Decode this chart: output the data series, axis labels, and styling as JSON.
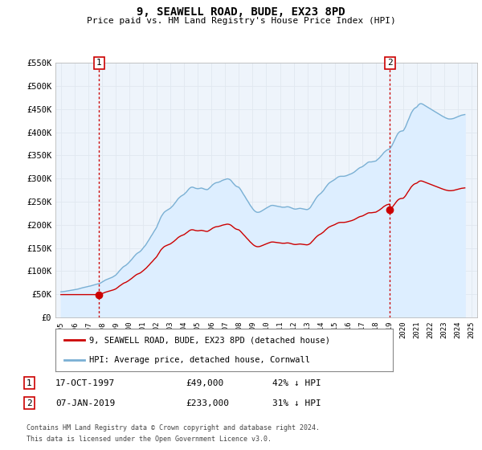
{
  "title": "9, SEAWELL ROAD, BUDE, EX23 8PD",
  "subtitle": "Price paid vs. HM Land Registry's House Price Index (HPI)",
  "hpi_color": "#7ab0d4",
  "hpi_fill_color": "#ddeeff",
  "price_color": "#cc0000",
  "vline_color": "#cc0000",
  "point_color": "#cc0000",
  "ylim": [
    0,
    550000
  ],
  "yticks": [
    0,
    50000,
    100000,
    150000,
    200000,
    250000,
    300000,
    350000,
    400000,
    450000,
    500000,
    550000
  ],
  "ytick_labels": [
    "£0",
    "£50K",
    "£100K",
    "£150K",
    "£200K",
    "£250K",
    "£300K",
    "£350K",
    "£400K",
    "£450K",
    "£500K",
    "£550K"
  ],
  "xlim_start": 1994.6,
  "xlim_end": 2025.4,
  "sale1_x": 1997.79,
  "sale1_y": 49000,
  "sale1_label": "1",
  "sale2_x": 2019.03,
  "sale2_y": 233000,
  "sale2_label": "2",
  "legend_line1": "9, SEAWELL ROAD, BUDE, EX23 8PD (detached house)",
  "legend_line2": "HPI: Average price, detached house, Cornwall",
  "footnote1": "Contains HM Land Registry data © Crown copyright and database right 2024.",
  "footnote2": "This data is licensed under the Open Government Licence v3.0.",
  "table_row1": [
    "1",
    "17-OCT-1997",
    "£49,000",
    "42% ↓ HPI"
  ],
  "table_row2": [
    "2",
    "07-JAN-2019",
    "£233,000",
    "31% ↓ HPI"
  ],
  "hpi_data_x": [
    1995.0,
    1995.08,
    1995.17,
    1995.25,
    1995.33,
    1995.42,
    1995.5,
    1995.58,
    1995.67,
    1995.75,
    1995.83,
    1995.92,
    1996.0,
    1996.08,
    1996.17,
    1996.25,
    1996.33,
    1996.42,
    1996.5,
    1996.58,
    1996.67,
    1996.75,
    1996.83,
    1996.92,
    1997.0,
    1997.08,
    1997.17,
    1997.25,
    1997.33,
    1997.42,
    1997.5,
    1997.58,
    1997.67,
    1997.75,
    1997.83,
    1997.92,
    1998.0,
    1998.08,
    1998.17,
    1998.25,
    1998.33,
    1998.42,
    1998.5,
    1998.58,
    1998.67,
    1998.75,
    1998.83,
    1998.92,
    1999.0,
    1999.08,
    1999.17,
    1999.25,
    1999.33,
    1999.42,
    1999.5,
    1999.58,
    1999.67,
    1999.75,
    1999.83,
    1999.92,
    2000.0,
    2000.08,
    2000.17,
    2000.25,
    2000.33,
    2000.42,
    2000.5,
    2000.58,
    2000.67,
    2000.75,
    2000.83,
    2000.92,
    2001.0,
    2001.08,
    2001.17,
    2001.25,
    2001.33,
    2001.42,
    2001.5,
    2001.58,
    2001.67,
    2001.75,
    2001.83,
    2001.92,
    2002.0,
    2002.08,
    2002.17,
    2002.25,
    2002.33,
    2002.42,
    2002.5,
    2002.58,
    2002.67,
    2002.75,
    2002.83,
    2002.92,
    2003.0,
    2003.08,
    2003.17,
    2003.25,
    2003.33,
    2003.42,
    2003.5,
    2003.58,
    2003.67,
    2003.75,
    2003.83,
    2003.92,
    2004.0,
    2004.08,
    2004.17,
    2004.25,
    2004.33,
    2004.42,
    2004.5,
    2004.58,
    2004.67,
    2004.75,
    2004.83,
    2004.92,
    2005.0,
    2005.08,
    2005.17,
    2005.25,
    2005.33,
    2005.42,
    2005.5,
    2005.58,
    2005.67,
    2005.75,
    2005.83,
    2005.92,
    2006.0,
    2006.08,
    2006.17,
    2006.25,
    2006.33,
    2006.42,
    2006.5,
    2006.58,
    2006.67,
    2006.75,
    2006.83,
    2006.92,
    2007.0,
    2007.08,
    2007.17,
    2007.25,
    2007.33,
    2007.42,
    2007.5,
    2007.58,
    2007.67,
    2007.75,
    2007.83,
    2007.92,
    2008.0,
    2008.08,
    2008.17,
    2008.25,
    2008.33,
    2008.42,
    2008.5,
    2008.58,
    2008.67,
    2008.75,
    2008.83,
    2008.92,
    2009.0,
    2009.08,
    2009.17,
    2009.25,
    2009.33,
    2009.42,
    2009.5,
    2009.58,
    2009.67,
    2009.75,
    2009.83,
    2009.92,
    2010.0,
    2010.08,
    2010.17,
    2010.25,
    2010.33,
    2010.42,
    2010.5,
    2010.58,
    2010.67,
    2010.75,
    2010.83,
    2010.92,
    2011.0,
    2011.08,
    2011.17,
    2011.25,
    2011.33,
    2011.42,
    2011.5,
    2011.58,
    2011.67,
    2011.75,
    2011.83,
    2011.92,
    2012.0,
    2012.08,
    2012.17,
    2012.25,
    2012.33,
    2012.42,
    2012.5,
    2012.58,
    2012.67,
    2012.75,
    2012.83,
    2012.92,
    2013.0,
    2013.08,
    2013.17,
    2013.25,
    2013.33,
    2013.42,
    2013.5,
    2013.58,
    2013.67,
    2013.75,
    2013.83,
    2013.92,
    2014.0,
    2014.08,
    2014.17,
    2014.25,
    2014.33,
    2014.42,
    2014.5,
    2014.58,
    2014.67,
    2014.75,
    2014.83,
    2014.92,
    2015.0,
    2015.08,
    2015.17,
    2015.25,
    2015.33,
    2015.42,
    2015.5,
    2015.58,
    2015.67,
    2015.75,
    2015.83,
    2015.92,
    2016.0,
    2016.08,
    2016.17,
    2016.25,
    2016.33,
    2016.42,
    2016.5,
    2016.58,
    2016.67,
    2016.75,
    2016.83,
    2016.92,
    2017.0,
    2017.08,
    2017.17,
    2017.25,
    2017.33,
    2017.42,
    2017.5,
    2017.58,
    2017.67,
    2017.75,
    2017.83,
    2017.92,
    2018.0,
    2018.08,
    2018.17,
    2018.25,
    2018.33,
    2018.42,
    2018.5,
    2018.58,
    2018.67,
    2018.75,
    2018.83,
    2018.92,
    2019.0,
    2019.08,
    2019.17,
    2019.25,
    2019.33,
    2019.42,
    2019.5,
    2019.58,
    2019.67,
    2019.75,
    2019.83,
    2019.92,
    2020.0,
    2020.08,
    2020.17,
    2020.25,
    2020.33,
    2020.42,
    2020.5,
    2020.58,
    2020.67,
    2020.75,
    2020.83,
    2020.92,
    2021.0,
    2021.08,
    2021.17,
    2021.25,
    2021.33,
    2021.42,
    2021.5,
    2021.58,
    2021.67,
    2021.75,
    2021.83,
    2021.92,
    2022.0,
    2022.08,
    2022.17,
    2022.25,
    2022.33,
    2022.42,
    2022.5,
    2022.58,
    2022.67,
    2022.75,
    2022.83,
    2022.92,
    2023.0,
    2023.08,
    2023.17,
    2023.25,
    2023.33,
    2023.42,
    2023.5,
    2023.58,
    2023.67,
    2023.75,
    2023.83,
    2023.92,
    2024.0,
    2024.08,
    2024.17,
    2024.25,
    2024.33,
    2024.42,
    2024.5
  ],
  "hpi_data_y": [
    55000,
    55200,
    55500,
    55800,
    56200,
    56800,
    57200,
    57600,
    58000,
    58400,
    58800,
    59200,
    59600,
    60000,
    60500,
    61000,
    61800,
    62500,
    63200,
    63800,
    64400,
    65000,
    65500,
    66000,
    66500,
    67000,
    67800,
    68500,
    69200,
    70000,
    70800,
    71500,
    72000,
    72500,
    73200,
    74500,
    76000,
    77500,
    79000,
    80500,
    81500,
    82500,
    83500,
    84500,
    85500,
    86500,
    88000,
    89500,
    91000,
    93500,
    96500,
    99500,
    102000,
    105000,
    107500,
    109500,
    111000,
    112500,
    114500,
    117000,
    119500,
    122000,
    125000,
    128000,
    131000,
    134000,
    136500,
    138500,
    140000,
    141500,
    143500,
    146500,
    149500,
    152500,
    155500,
    159000,
    163000,
    167000,
    171000,
    175000,
    179000,
    183000,
    187000,
    191000,
    195000,
    201000,
    207000,
    213000,
    218000,
    222000,
    225500,
    228000,
    230000,
    231500,
    233000,
    234500,
    236000,
    238500,
    241000,
    244000,
    247000,
    250500,
    254000,
    257000,
    259500,
    261500,
    263000,
    264500,
    266000,
    268500,
    271000,
    274000,
    277000,
    279500,
    281000,
    281500,
    281000,
    280000,
    279000,
    278500,
    278000,
    278500,
    279000,
    279500,
    279000,
    278000,
    277000,
    276500,
    276000,
    277000,
    279000,
    281500,
    284000,
    286500,
    288500,
    290000,
    291000,
    291500,
    292000,
    293000,
    294000,
    295500,
    296500,
    297500,
    298000,
    299000,
    299500,
    299000,
    298000,
    296000,
    293000,
    290000,
    287000,
    284500,
    283000,
    282000,
    281000,
    278000,
    274000,
    270000,
    266000,
    262000,
    258000,
    254000,
    250000,
    246000,
    242000,
    238500,
    235000,
    232000,
    229500,
    228000,
    227000,
    227000,
    227500,
    228500,
    230000,
    231500,
    233000,
    234500,
    236000,
    237500,
    239000,
    240500,
    241500,
    242000,
    242000,
    241500,
    241000,
    240500,
    240000,
    239500,
    239000,
    238500,
    238000,
    238000,
    238000,
    238500,
    239000,
    239000,
    238500,
    237500,
    236500,
    235500,
    234500,
    234000,
    234000,
    234500,
    235000,
    235500,
    235500,
    235000,
    234500,
    234000,
    233500,
    233000,
    233000,
    234000,
    236000,
    239000,
    243000,
    247000,
    251000,
    255000,
    259000,
    262000,
    264500,
    266500,
    268500,
    271000,
    274000,
    277500,
    281000,
    284500,
    287500,
    290000,
    292000,
    293500,
    295000,
    296500,
    298000,
    300000,
    302000,
    303500,
    304500,
    305000,
    305000,
    305000,
    305000,
    305500,
    306000,
    307000,
    308000,
    309000,
    310000,
    311000,
    312500,
    314000,
    316000,
    318000,
    320000,
    322000,
    323500,
    324500,
    325500,
    327000,
    329000,
    331000,
    333000,
    335000,
    336000,
    336000,
    336000,
    336500,
    337000,
    337500,
    338000,
    340000,
    342000,
    344500,
    347000,
    350000,
    353000,
    356000,
    358500,
    360500,
    362000,
    363000,
    364000,
    367000,
    371000,
    376000,
    381000,
    386500,
    391500,
    396000,
    399500,
    401500,
    402500,
    403000,
    403500,
    407000,
    412000,
    418000,
    424000,
    430000,
    436000,
    441500,
    446000,
    449500,
    452000,
    453500,
    455000,
    458000,
    461000,
    462000,
    462000,
    461000,
    459500,
    458000,
    456500,
    455000,
    453500,
    452000,
    450500,
    449000,
    447500,
    446000,
    444500,
    443000,
    441500,
    440000,
    438500,
    437000,
    435500,
    434000,
    432500,
    431500,
    430500,
    429500,
    429000,
    429000,
    429000,
    429500,
    430000,
    431000,
    432000,
    433000,
    434000,
    435000,
    436000,
    437000,
    437500,
    438000,
    438500
  ],
  "bg_color": "#ffffff",
  "grid_color": "#e0e8f0",
  "chart_bg": "#eef4fb"
}
